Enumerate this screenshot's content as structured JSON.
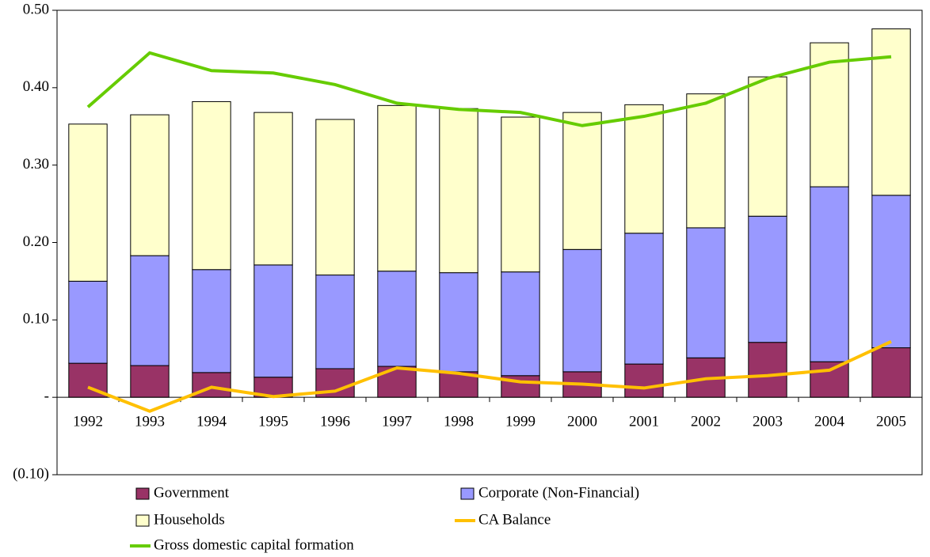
{
  "chart_data": {
    "type": "bar",
    "categories": [
      "1992",
      "1993",
      "1994",
      "1995",
      "1996",
      "1997",
      "1998",
      "1999",
      "2000",
      "2001",
      "2002",
      "2003",
      "2004",
      "2005"
    ],
    "series": [
      {
        "name": "Government",
        "color": "#993366",
        "stack": true,
        "values": [
          0.044,
          0.041,
          0.032,
          0.026,
          0.037,
          0.04,
          0.033,
          0.028,
          0.033,
          0.043,
          0.051,
          0.071,
          0.046,
          0.064
        ]
      },
      {
        "name": "Corporate (Non-Financial)",
        "color": "#9999ff",
        "stack": true,
        "values": [
          0.106,
          0.142,
          0.133,
          0.145,
          0.121,
          0.123,
          0.128,
          0.134,
          0.158,
          0.169,
          0.168,
          0.163,
          0.226,
          0.197
        ]
      },
      {
        "name": "Households",
        "color": "#ffffcc",
        "stack": true,
        "values": [
          0.203,
          0.182,
          0.217,
          0.197,
          0.201,
          0.214,
          0.212,
          0.2,
          0.177,
          0.166,
          0.173,
          0.18,
          0.186,
          0.215
        ]
      },
      {
        "name": "CA Balance",
        "color": "#ffc000",
        "line": true,
        "values": [
          0.013,
          -0.018,
          0.013,
          0.001,
          0.008,
          0.038,
          0.031,
          0.02,
          0.017,
          0.012,
          0.024,
          0.028,
          0.035,
          0.072
        ]
      },
      {
        "name": "Gross domestic capital formation",
        "color": "#66cc00",
        "line": true,
        "values": [
          0.375,
          0.445,
          0.422,
          0.419,
          0.404,
          0.38,
          0.372,
          0.368,
          0.351,
          0.363,
          0.38,
          0.412,
          0.433,
          0.44
        ]
      }
    ],
    "ylim": [
      -0.1,
      0.5
    ],
    "yticks": [
      {
        "value": 0.5,
        "label": "0.50"
      },
      {
        "value": 0.4,
        "label": "0.40"
      },
      {
        "value": 0.3,
        "label": "0.30"
      },
      {
        "value": 0.2,
        "label": "0.20"
      },
      {
        "value": 0.1,
        "label": "0.10"
      },
      {
        "value": 0,
        "label": "-"
      },
      {
        "value": -0.1,
        "label": "(0.10)"
      }
    ]
  }
}
